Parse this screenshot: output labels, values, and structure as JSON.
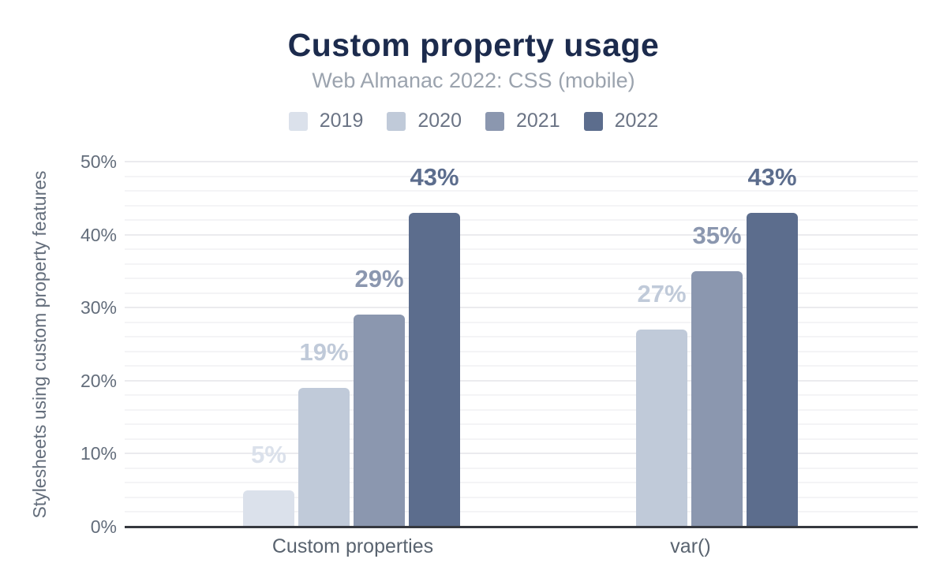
{
  "chart_data": {
    "type": "bar",
    "title": "Custom property usage",
    "subtitle": "Web Almanac 2022: CSS (mobile)",
    "ylabel": "Stylesheets using custom property features",
    "xlabel": "",
    "categories": [
      "Custom properties",
      "var()"
    ],
    "series": [
      {
        "name": "2019",
        "color": "#dbe1eb",
        "values": [
          5,
          null
        ],
        "labels": [
          "5%",
          null
        ]
      },
      {
        "name": "2020",
        "color": "#c0cad9",
        "values": [
          19,
          27
        ],
        "labels": [
          "19%",
          "27%"
        ]
      },
      {
        "name": "2021",
        "color": "#8b97af",
        "values": [
          29,
          35
        ],
        "labels": [
          "29%",
          "35%"
        ]
      },
      {
        "name": "2022",
        "color": "#5c6d8d",
        "values": [
          43,
          43
        ],
        "labels": [
          "43%",
          "43%"
        ]
      }
    ],
    "y_ticks": [
      "0%",
      "10%",
      "20%",
      "30%",
      "40%",
      "50%"
    ],
    "ylim": [
      0,
      50
    ],
    "grid": {
      "minor_step": 2,
      "major_step": 10,
      "shown": true
    },
    "legend_position": "top",
    "value_labels_shown": true
  },
  "colors": {
    "background": "#ffffff",
    "title_text": "#1c2b4d",
    "subtitle_text": "#9ba3ae",
    "legend_text": "#6b7485",
    "axis_text": "#636d7b",
    "category_text": "#59636f",
    "axis_line": "#35383f",
    "grid_minor": "#f4f4f6",
    "grid_major": "#ebebee"
  }
}
